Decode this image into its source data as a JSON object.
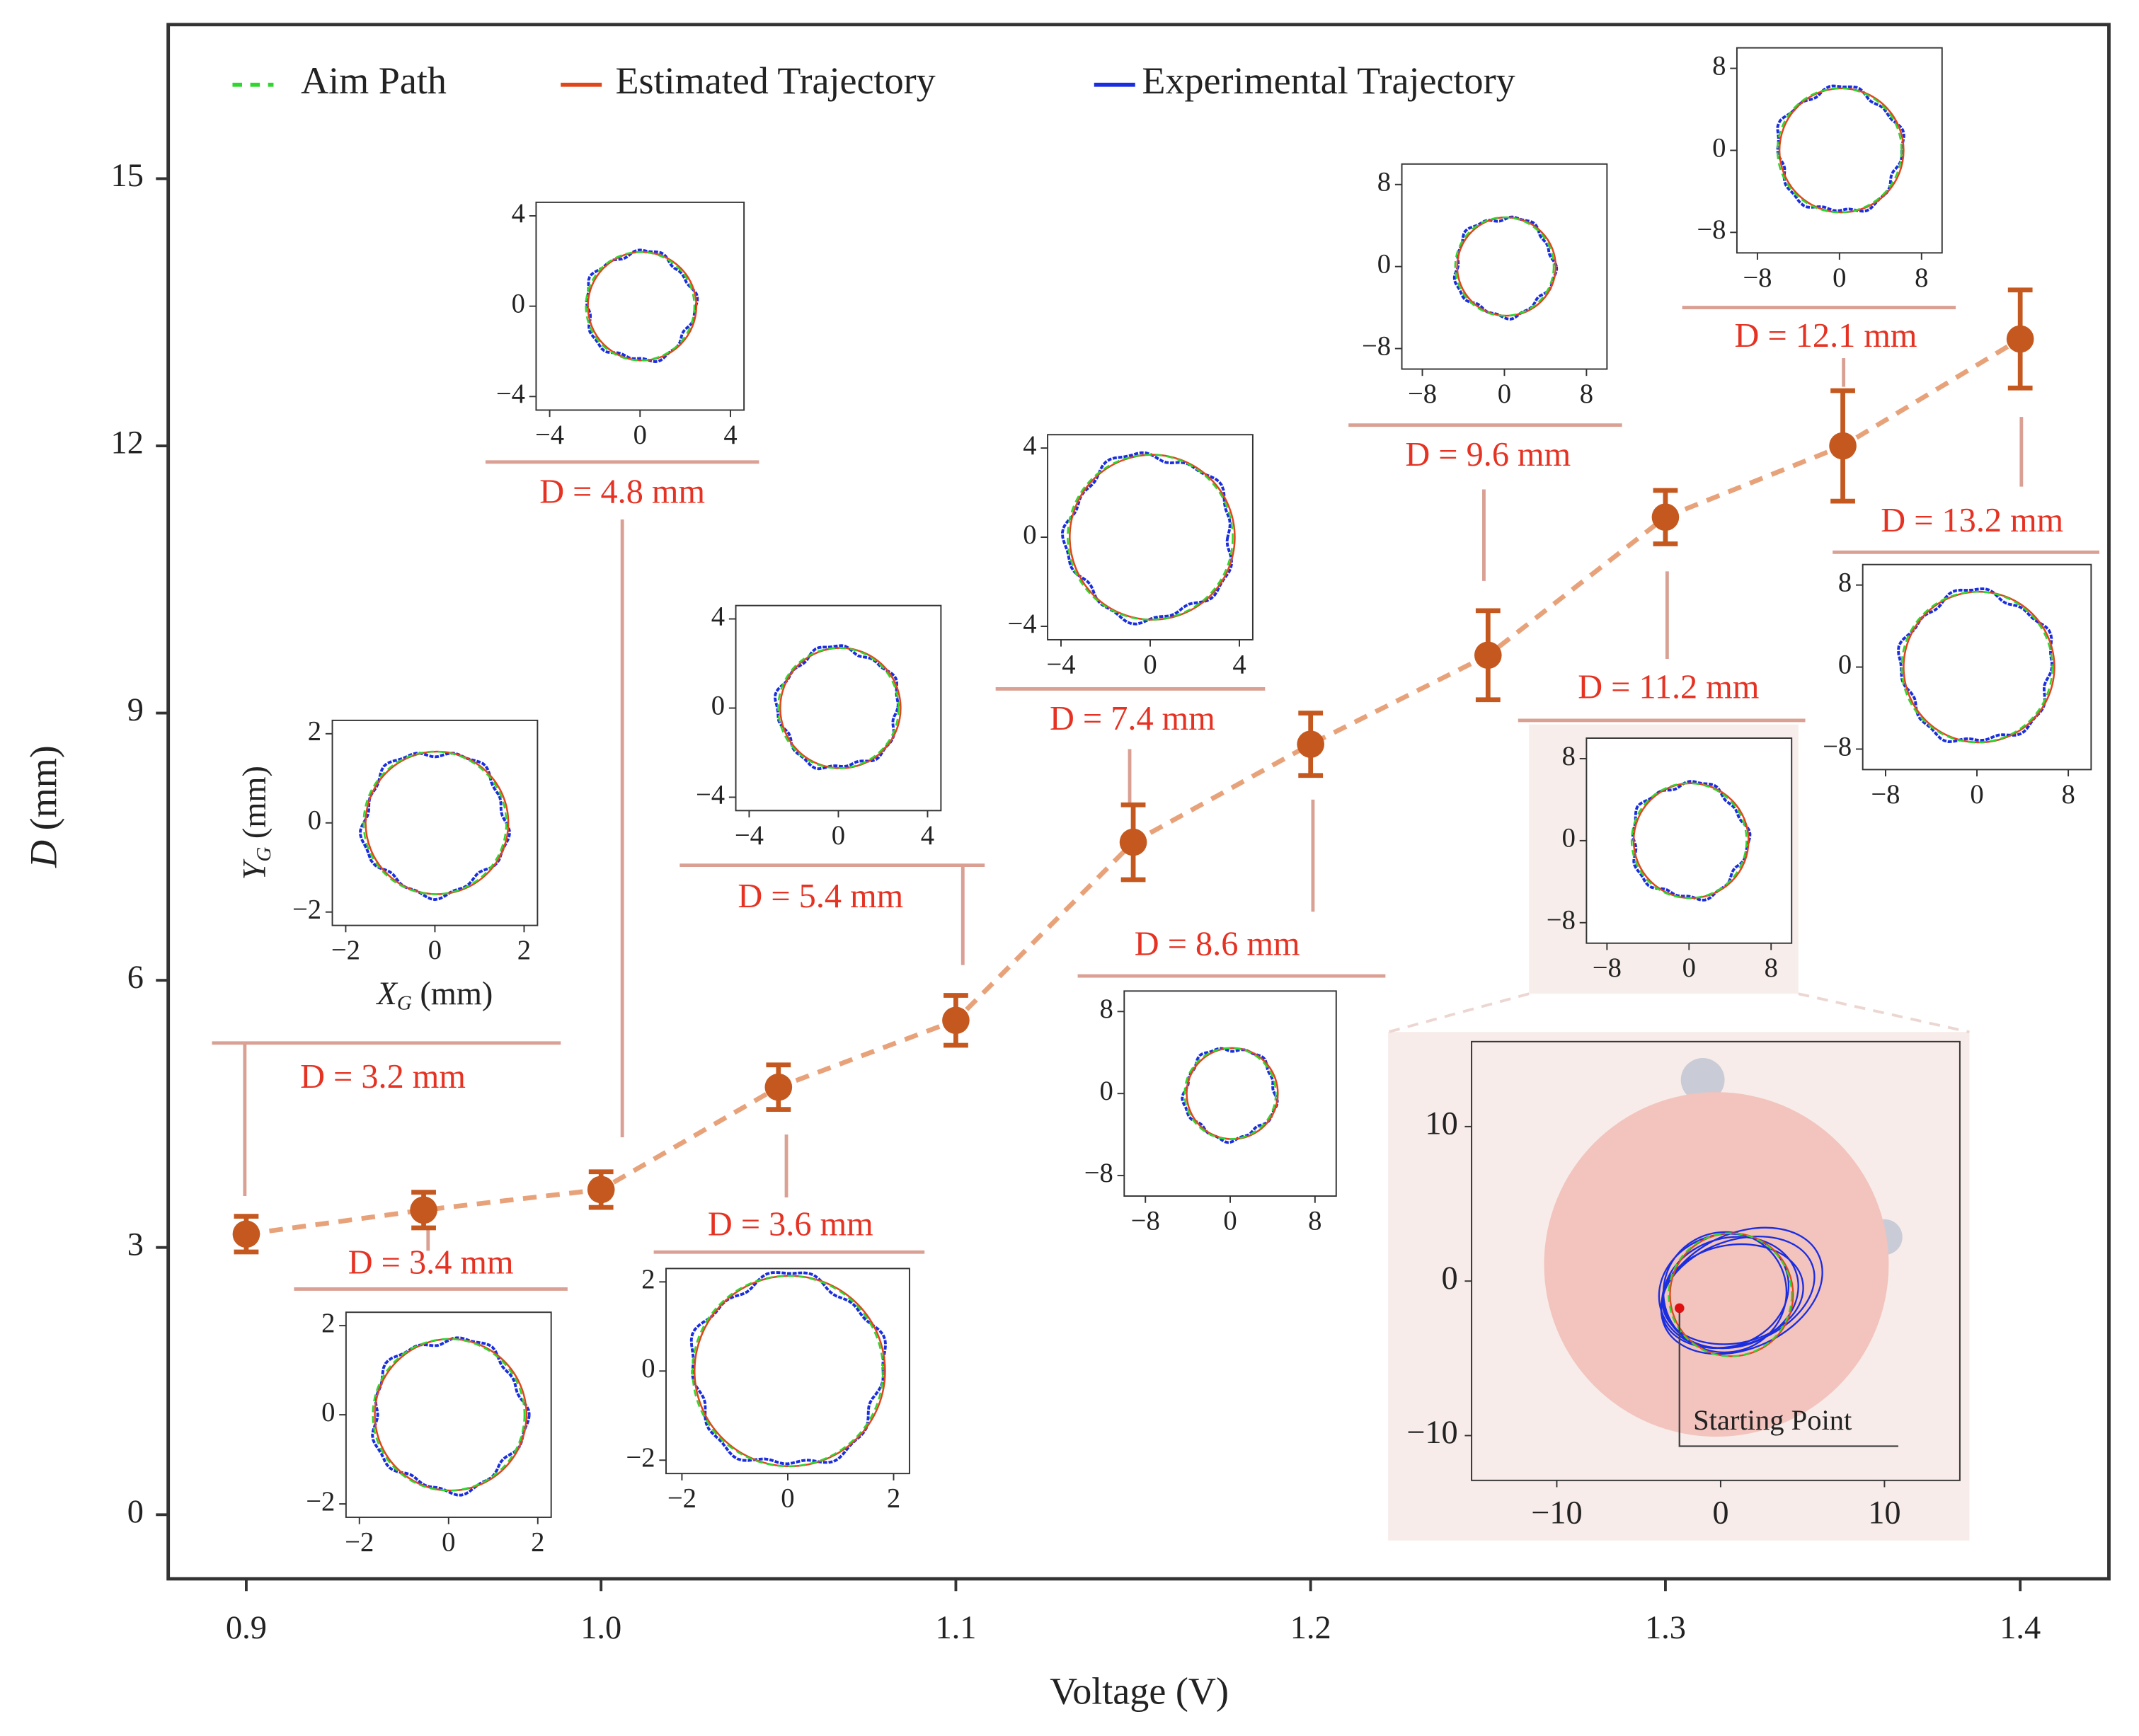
{
  "chart_data": {
    "type": "line",
    "x_label": "Voltage (V)",
    "y_label": {
      "symbol": "D",
      "unit": "(mm)"
    },
    "x": [
      0.9,
      0.95,
      1.0,
      1.05,
      1.1,
      1.15,
      1.2,
      1.25,
      1.3,
      1.35,
      1.4
    ],
    "values": [
      3.15,
      3.42,
      3.65,
      4.8,
      5.55,
      7.55,
      8.65,
      9.65,
      11.2,
      12.0,
      13.2
    ],
    "errors": [
      0.2,
      0.2,
      0.2,
      0.25,
      0.28,
      0.42,
      0.35,
      0.5,
      0.3,
      0.62,
      0.55
    ],
    "color": "#c4581f",
    "line_color": "#e8a27a",
    "xlim": [
      0.878,
      1.425
    ],
    "ylim": [
      -0.72,
      16.73
    ],
    "xticks": [
      0.9,
      {
        "value": 1,
        "label": "1.0"
      },
      1.1,
      1.2,
      1.3,
      1.4
    ],
    "yticks": [
      0,
      3,
      6,
      9,
      12,
      15
    ],
    "legend": [
      {
        "name": "Aim Path",
        "color": "#2fd62f",
        "style": "dashed"
      },
      {
        "name": "Estimated Trajectory",
        "color": "#e0461c",
        "style": "solid"
      },
      {
        "name": "Experimental Trajectory",
        "color": "#1a2ee0",
        "style": "solid"
      }
    ],
    "insets": [
      {
        "label": "D = 3.2 mm",
        "diameter": 3.2,
        "lim": [
          -2.3,
          2.3
        ],
        "ticks": [
          {
            "value": -2,
            "label": "−2"
          },
          0,
          2
        ],
        "x_label": {
          "symbol": "X",
          "sub": "G",
          "unit": "(mm)"
        },
        "y_label": {
          "symbol": "Y",
          "sub": "G",
          "unit": "(mm)"
        }
      },
      {
        "label": "D = 3.4 mm",
        "diameter": 3.4,
        "lim": [
          -2.3,
          2.3
        ],
        "ticks": [
          {
            "value": -2,
            "label": "−2"
          },
          0,
          2
        ]
      },
      {
        "label": "D = 4.8 mm",
        "diameter": 4.8,
        "lim": [
          -4.6,
          4.6
        ],
        "ticks": [
          {
            "value": -4,
            "label": "−4"
          },
          0,
          4
        ]
      },
      {
        "label": "D = 3.6 mm",
        "diameter": 3.6,
        "lim": [
          -2.3,
          2.3
        ],
        "ticks": [
          {
            "value": -2,
            "label": "−2"
          },
          0,
          2
        ]
      },
      {
        "label": "D = 5.4 mm",
        "diameter": 5.4,
        "lim": [
          -4.6,
          4.6
        ],
        "ticks": [
          {
            "value": -4,
            "label": "−4"
          },
          0,
          4
        ]
      },
      {
        "label": "D = 7.4 mm",
        "diameter": 7.4,
        "lim": [
          -4.6,
          4.6
        ],
        "ticks": [
          {
            "value": -4,
            "label": "−4"
          },
          0,
          4
        ]
      },
      {
        "label": "D = 8.6 mm",
        "diameter": 8.6,
        "lim": [
          -10,
          10
        ],
        "ticks": [
          {
            "value": -8,
            "label": "−8"
          },
          0,
          8
        ]
      },
      {
        "label": "D = 9.6 mm",
        "diameter": 9.6,
        "lim": [
          -10,
          10
        ],
        "ticks": [
          {
            "value": -8,
            "label": "−8"
          },
          0,
          8
        ]
      },
      {
        "label": "D = 11.2 mm",
        "diameter": 11.2,
        "lim": [
          -10,
          10
        ],
        "ticks": [
          {
            "value": -8,
            "label": "−8"
          },
          0,
          8
        ]
      },
      {
        "label": "D = 12.1 mm",
        "diameter": 12.1,
        "lim": [
          -10,
          10
        ],
        "ticks": [
          {
            "value": -8,
            "label": "−8"
          },
          0,
          8
        ]
      },
      {
        "label": "D = 13.2 mm",
        "diameter": 13.2,
        "lim": [
          -10,
          10
        ],
        "ticks": [
          {
            "value": -8,
            "label": "−8"
          },
          0,
          8
        ]
      }
    ],
    "photo_inset": {
      "xlim": [
        -15.2,
        14.6
      ],
      "ylim": [
        -12.9,
        15.5
      ],
      "xticks": [
        {
          "value": -10,
          "label": "−10"
        },
        0,
        10
      ],
      "yticks": [
        {
          "value": -10,
          "label": "−10"
        },
        0,
        10
      ],
      "annotation": "Starting Point"
    }
  }
}
